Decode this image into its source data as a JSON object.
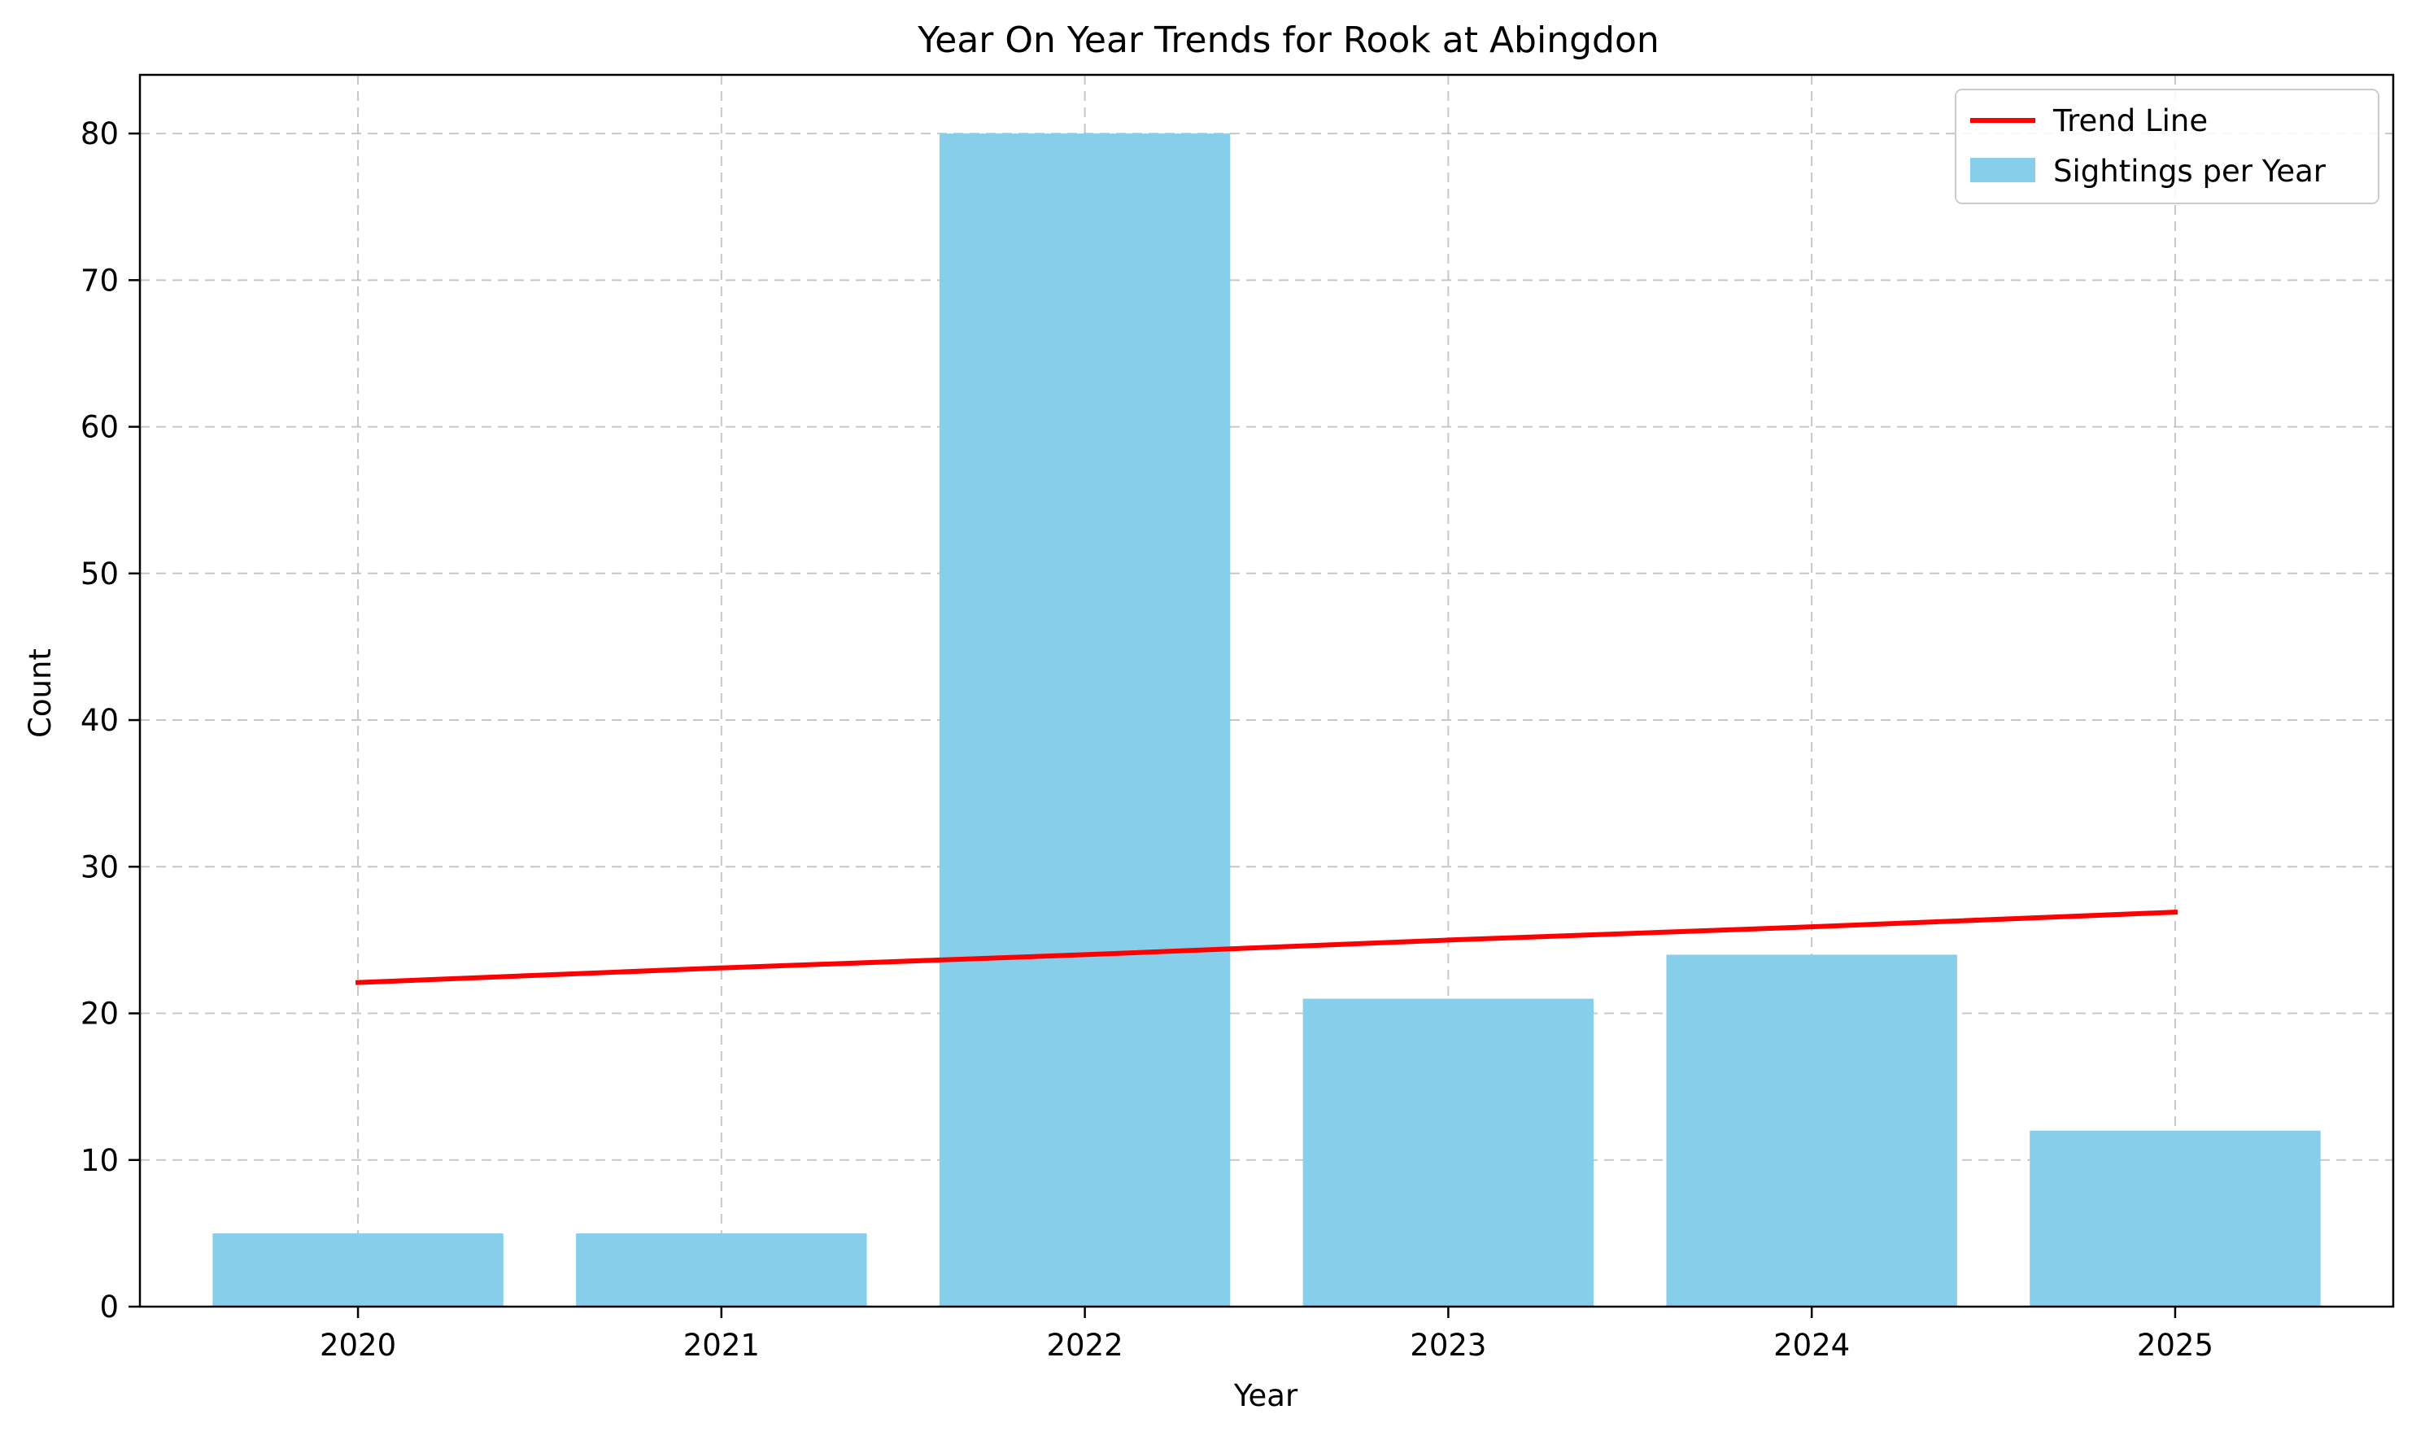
{
  "chart_data": {
    "type": "bar",
    "title": "Year On Year Trends for Rook at Abingdon",
    "xlabel": "Year",
    "ylabel": "Count",
    "categories": [
      "2020",
      "2021",
      "2022",
      "2023",
      "2024",
      "2025"
    ],
    "series": [
      {
        "name": "Sightings per Year",
        "type": "bar",
        "values": [
          5,
          5,
          80,
          21,
          24,
          12
        ],
        "color": "#87ceeb"
      },
      {
        "name": "Trend Line",
        "type": "line",
        "values": [
          22.1,
          23.1,
          24.0,
          25.0,
          25.9,
          26.9
        ],
        "color": "#ff0000"
      }
    ],
    "ylim": [
      0,
      84
    ],
    "yticks": [
      0,
      10,
      20,
      30,
      40,
      50,
      60,
      70,
      80
    ],
    "grid": true,
    "legend_position": "top-right"
  }
}
